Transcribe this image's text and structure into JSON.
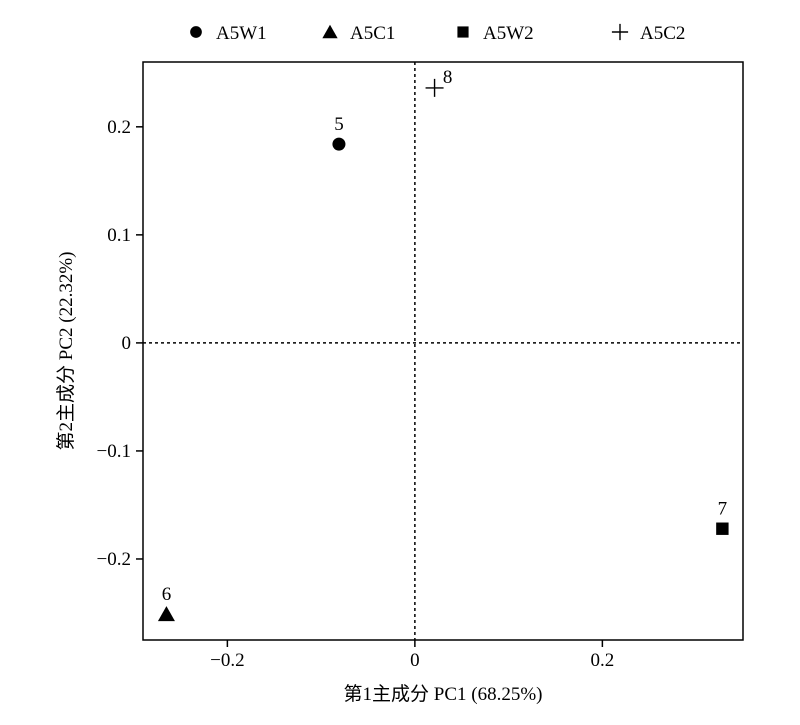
{
  "chart_data": {
    "type": "scatter",
    "title": "",
    "xlabel": "第1主成分 PC1 (68.25%)",
    "ylabel": "第2主成分 PC2 (22.32%)",
    "xlim": [
      -0.29,
      0.35
    ],
    "ylim": [
      -0.275,
      0.26
    ],
    "x_ticks": [
      -0.2,
      0,
      0.2
    ],
    "x_tick_labels": [
      "−0.2",
      "0",
      "0.2"
    ],
    "y_ticks": [
      -0.2,
      -0.1,
      0,
      0.1,
      0.2
    ],
    "y_tick_labels": [
      "−0.2",
      "−0.1",
      "0",
      "0.1",
      "0.2"
    ],
    "reference_lines": {
      "x": 0,
      "y": 0,
      "style": "dashed"
    },
    "grid": false,
    "legend_position": "top",
    "series": [
      {
        "name": "A5W1",
        "marker": "circle",
        "points": [
          {
            "x": -0.081,
            "y": 0.184,
            "label": "5"
          }
        ]
      },
      {
        "name": "A5C1",
        "marker": "triangle",
        "points": [
          {
            "x": -0.265,
            "y": -0.251,
            "label": "6"
          }
        ]
      },
      {
        "name": "A5W2",
        "marker": "square",
        "points": [
          {
            "x": 0.328,
            "y": -0.172,
            "label": "7"
          }
        ]
      },
      {
        "name": "A5C2",
        "marker": "plus",
        "points": [
          {
            "x": 0.021,
            "y": 0.236,
            "label": "8"
          }
        ]
      }
    ]
  }
}
